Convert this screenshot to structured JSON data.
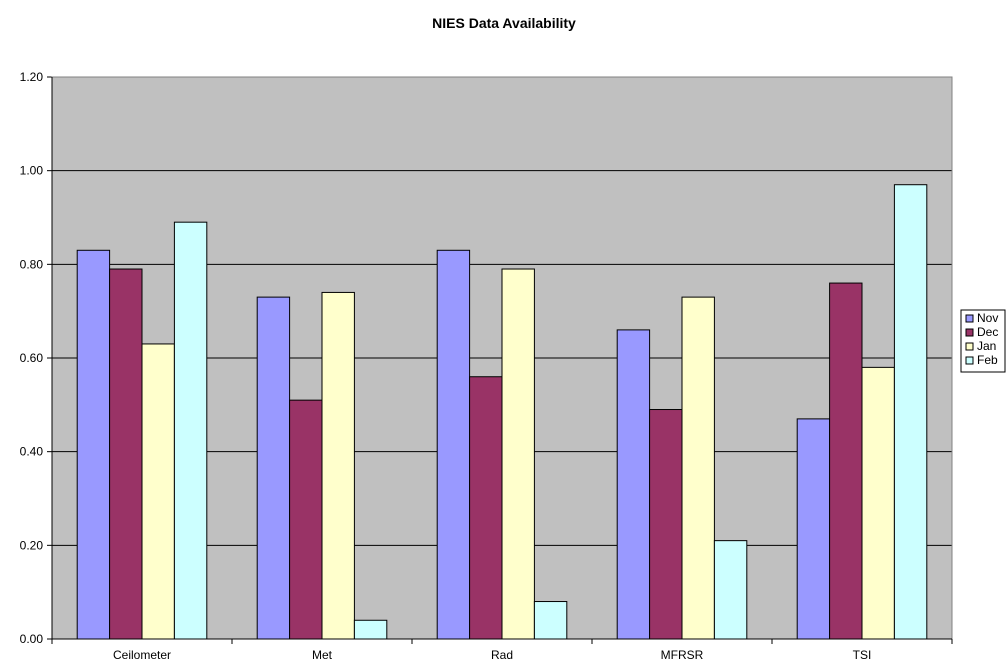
{
  "chart_data": {
    "type": "bar",
    "title": "NIES Data Availability",
    "xlabel": "",
    "ylabel": "",
    "categories": [
      "Ceilometer",
      "Met",
      "Rad",
      "MFRSR",
      "TSI"
    ],
    "series": [
      {
        "name": "Nov",
        "color": "#9999FF",
        "values": [
          0.83,
          0.73,
          0.83,
          0.66,
          0.47
        ]
      },
      {
        "name": "Dec",
        "color": "#993366",
        "values": [
          0.79,
          0.51,
          0.56,
          0.49,
          0.76
        ]
      },
      {
        "name": "Jan",
        "color": "#FFFFCC",
        "values": [
          0.63,
          0.74,
          0.79,
          0.73,
          0.58
        ]
      },
      {
        "name": "Feb",
        "color": "#CCFFFF",
        "values": [
          0.89,
          0.04,
          0.08,
          0.21,
          0.97
        ]
      }
    ],
    "ylim": [
      0,
      1.2
    ],
    "yticks": [
      "0.00",
      "0.20",
      "0.40",
      "0.60",
      "0.80",
      "1.00",
      "1.20"
    ],
    "grid": true,
    "legend_position": "right",
    "plot_background": "#C0C0C0"
  }
}
